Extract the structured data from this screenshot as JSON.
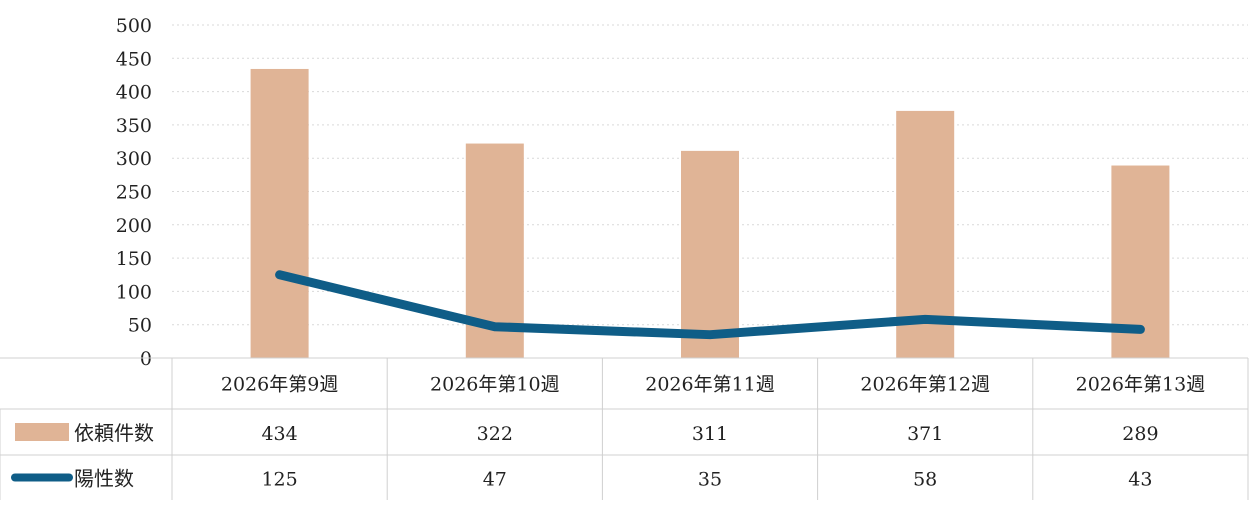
{
  "chart_data": {
    "type": "bar+line",
    "categories": [
      "2026年第9週",
      "2026年第10週",
      "2026年第11週",
      "2026年第12週",
      "2026年第13週"
    ],
    "series": [
      {
        "name": "依頼件数",
        "type": "bar",
        "color": "#e0b496",
        "values": [
          434,
          322,
          311,
          371,
          289
        ]
      },
      {
        "name": "陽性数",
        "type": "line",
        "color": "#0f5d87",
        "values": [
          125,
          47,
          35,
          58,
          43
        ]
      }
    ],
    "ylim": [
      0,
      500
    ],
    "yticks": [
      0,
      50,
      100,
      150,
      200,
      250,
      300,
      350,
      400,
      450,
      500
    ],
    "grid": true,
    "legend": "data-table-below"
  }
}
